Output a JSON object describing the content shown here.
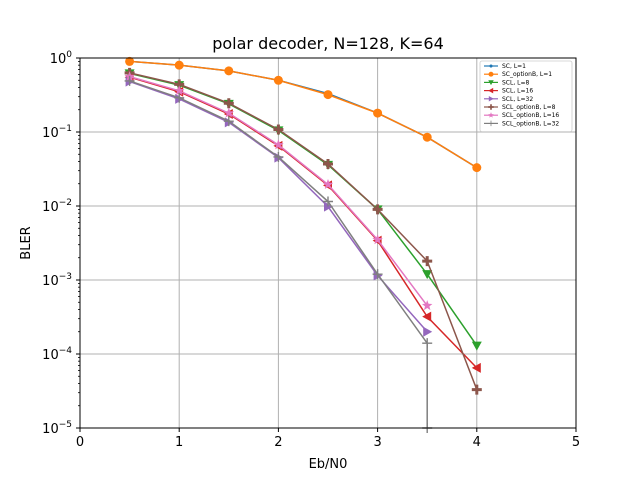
{
  "chart_data": {
    "type": "line",
    "title": "polar decoder, N=128, K=64",
    "xlabel": "Eb/N0",
    "ylabel": "BLER",
    "xlim": [
      0,
      5
    ],
    "ylim": [
      1e-05,
      1
    ],
    "yscale": "log",
    "grid": true,
    "legend_position": "top-right",
    "x_ticks": [
      "0",
      "1",
      "2",
      "3",
      "4",
      "5"
    ],
    "y_ticks": [
      {
        "base": "10",
        "exp": "0"
      },
      {
        "base": "10",
        "exp": "−1"
      },
      {
        "base": "10",
        "exp": "−2"
      },
      {
        "base": "10",
        "exp": "−3"
      },
      {
        "base": "10",
        "exp": "−4"
      },
      {
        "base": "10",
        "exp": "−5"
      }
    ],
    "series": [
      {
        "name": "SC, L=1",
        "color": "#1f77b4",
        "marker": "dot",
        "x": [
          0.5,
          1.0,
          1.5,
          2.0,
          2.5,
          3.0,
          3.5,
          4.0
        ],
        "y": [
          0.9,
          0.8,
          0.67,
          0.5,
          0.33,
          0.18,
          0.085,
          0.033
        ]
      },
      {
        "name": "SC_optionB, L=1",
        "color": "#ff7f0e",
        "marker": "circle",
        "x": [
          0.5,
          1.0,
          1.5,
          2.0,
          2.5,
          3.0,
          3.5,
          4.0
        ],
        "y": [
          0.9,
          0.8,
          0.67,
          0.5,
          0.32,
          0.18,
          0.085,
          0.033
        ]
      },
      {
        "name": "SCL, L=8",
        "color": "#2ca02c",
        "marker": "triangle-down",
        "x": [
          0.5,
          1.0,
          1.5,
          2.0,
          2.5,
          3.0,
          3.5,
          4.0
        ],
        "y": [
          0.62,
          0.43,
          0.24,
          0.105,
          0.036,
          0.009,
          0.0012,
          0.00013
        ]
      },
      {
        "name": "SCL, L=16",
        "color": "#d62728",
        "marker": "triangle-left",
        "x": [
          0.5,
          1.0,
          1.5,
          2.0,
          2.5,
          3.0,
          3.5,
          4.0
        ],
        "y": [
          0.55,
          0.35,
          0.175,
          0.065,
          0.019,
          0.0034,
          0.00032,
          6.5e-05
        ]
      },
      {
        "name": "SCL, L=32",
        "color": "#9467bd",
        "marker": "triangle-right",
        "x": [
          0.5,
          1.0,
          1.5,
          2.0,
          2.5,
          3.0,
          3.5
        ],
        "y": [
          0.48,
          0.28,
          0.135,
          0.045,
          0.0098,
          0.00115,
          0.0002
        ]
      },
      {
        "name": "SCL_optionB, L=8",
        "color": "#8c564b",
        "marker": "plus",
        "x": [
          0.5,
          1.0,
          1.5,
          2.0,
          2.5,
          3.0,
          3.5,
          4.0
        ],
        "y": [
          0.63,
          0.44,
          0.245,
          0.108,
          0.037,
          0.009,
          0.0018,
          3.3e-05
        ]
      },
      {
        "name": "SCL_optionB, L=16",
        "color": "#e377c2",
        "marker": "star",
        "x": [
          0.5,
          1.0,
          1.5,
          2.0,
          2.5,
          3.0,
          3.5
        ],
        "y": [
          0.56,
          0.36,
          0.18,
          0.067,
          0.0195,
          0.0035,
          0.00045
        ]
      },
      {
        "name": "SCL_optionB, L=32",
        "color": "#7f7f7f",
        "marker": "plus-thin",
        "x": [
          0.5,
          1.0,
          1.5,
          2.0,
          2.5,
          3.0,
          3.5,
          3.5
        ],
        "y": [
          0.49,
          0.29,
          0.14,
          0.046,
          0.0115,
          0.0012,
          0.00014,
          1e-05
        ]
      }
    ]
  }
}
